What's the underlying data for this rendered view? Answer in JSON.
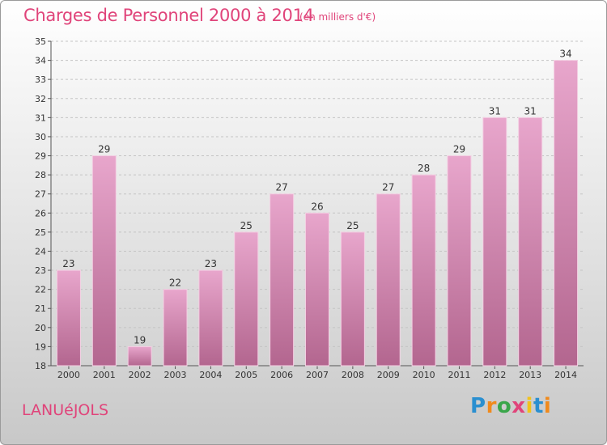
{
  "header": {
    "title": "Charges de Personnel 2000 à 2014",
    "subtitle": "(en milliers d'€)"
  },
  "footer": {
    "town": "LANUéJOLS",
    "logo_letters": [
      "P",
      "r",
      "o",
      "x",
      "i",
      "t",
      "i"
    ]
  },
  "colors": {
    "bar_light": "#e8a6cc",
    "bar_dark": "#b3668f",
    "title": "#e0447a"
  },
  "chart_data": {
    "type": "bar",
    "title": "Charges de Personnel 2000 à 2014",
    "subtitle": "(en milliers d'€)",
    "xlabel": "",
    "ylabel": "",
    "categories": [
      "2000",
      "2001",
      "2002",
      "2003",
      "2004",
      "2005",
      "2006",
      "2007",
      "2008",
      "2009",
      "2010",
      "2011",
      "2012",
      "2013",
      "2014"
    ],
    "values": [
      23,
      29,
      19,
      22,
      23,
      25,
      27,
      26,
      25,
      27,
      28,
      29,
      31,
      31,
      34
    ],
    "ylim": [
      18,
      35
    ],
    "yticks": [
      18,
      19,
      20,
      21,
      22,
      23,
      24,
      25,
      26,
      27,
      28,
      29,
      30,
      31,
      32,
      33,
      34,
      35
    ],
    "grid": true,
    "data_labels": true
  }
}
